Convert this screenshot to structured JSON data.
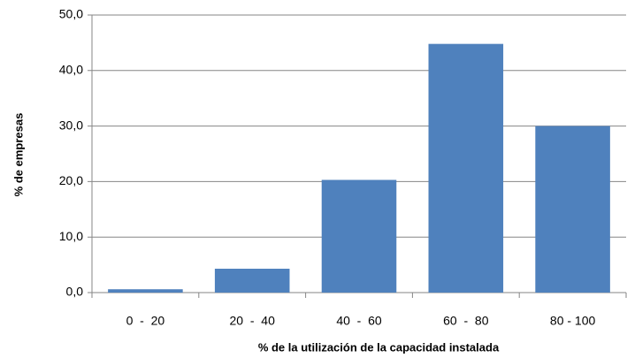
{
  "chart_data": {
    "type": "bar",
    "x_label": "% de la utilización de la capacidad instalada",
    "y_label": "% de empresas",
    "categories": [
      "0  -  20",
      "20  -  40",
      "40  -  60",
      "60  -  80",
      "80 - 100"
    ],
    "values": [
      0.6,
      4.3,
      20.3,
      44.8,
      30.0
    ],
    "color": "#4f81bd",
    "ylim": [
      0,
      50
    ],
    "yticks": [
      {
        "value": 0,
        "label": "0,0"
      },
      {
        "value": 10,
        "label": "10,0"
      },
      {
        "value": 20,
        "label": "20,0"
      },
      {
        "value": 30,
        "label": "30,0"
      },
      {
        "value": 40,
        "label": "40,0"
      },
      {
        "value": 50,
        "label": "50,0"
      }
    ],
    "grid": true
  }
}
